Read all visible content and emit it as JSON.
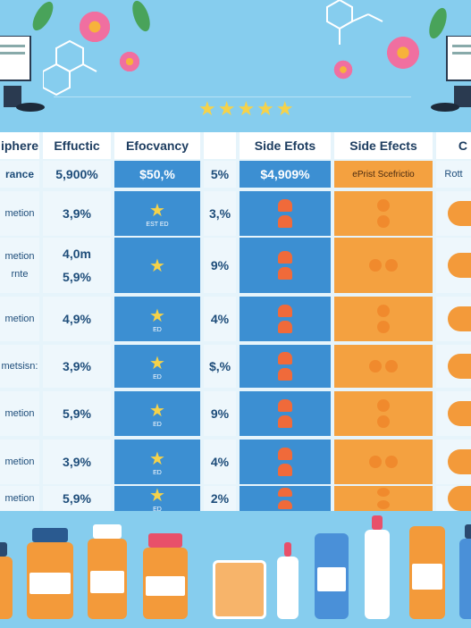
{
  "header": {
    "col1": "iphere",
    "col2": "Effuctic",
    "col3": "Efocvancy",
    "col5": "Side Efots",
    "col6": "Side Efects",
    "col7": "C"
  },
  "summary_row": {
    "col1": "rance",
    "col2": "5,900%",
    "col3": "$50,%",
    "col4": "5%",
    "col5": "$4,909%",
    "col6": "ePrist Scefrictio",
    "col7": "Rott"
  },
  "rows": [
    {
      "label": "metion",
      "value": "3,9%",
      "pct": "3,%",
      "sub": "EST ED"
    },
    {
      "label": "metion",
      "label2": "rnte",
      "value": "4,0m",
      "value2": "5,9%",
      "pct": "9%",
      "sub": ""
    },
    {
      "label": "metion",
      "value": "4,9%",
      "pct": "4%",
      "sub": "ED"
    },
    {
      "label": "metsisn:",
      "value": "3,9%",
      "pct": "$,%",
      "sub": "ED"
    },
    {
      "label": "metion",
      "value": "5,9%",
      "pct": "9%",
      "sub": "ED"
    },
    {
      "label": "metion",
      "value": "3,9%",
      "pct": "4%",
      "sub": "ED"
    },
    {
      "label": "metion",
      "value": "5,9%",
      "pct": "2%",
      "sub": "ED"
    }
  ],
  "decor": {
    "stars": "★★★★★",
    "star_single": "★",
    "colors": {
      "blue": "#3c8fd2",
      "orange": "#f4a140",
      "background": "#86cdee"
    },
    "icons": [
      "flower-icon",
      "leaf-icon",
      "molecule-icon",
      "star-icon",
      "heart-icon",
      "pill-bottle-icon",
      "blister-pack-icon",
      "dropper-bottle-icon",
      "tube-icon"
    ]
  }
}
